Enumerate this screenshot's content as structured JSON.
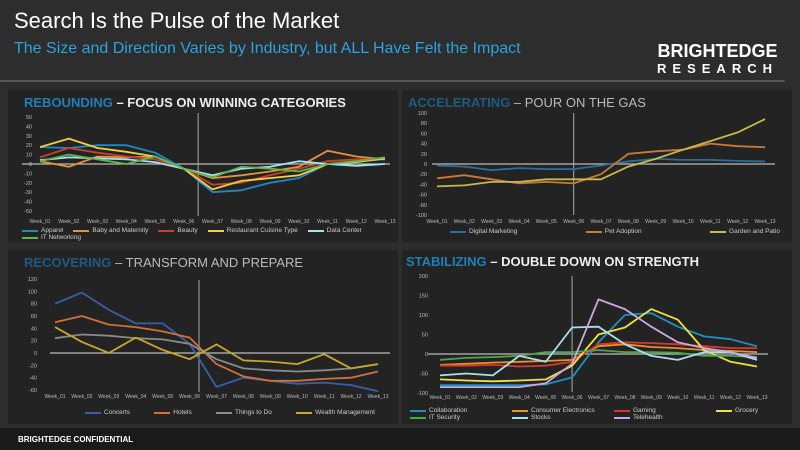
{
  "header": {
    "title": "Search Is the Pulse of the Market",
    "subtitle": "The Size and Direction Varies by Industry, but ALL Have Felt the Impact",
    "logo_line1": "BRIGHTEDGE",
    "logo_line2": "RESEARCH"
  },
  "footer": {
    "text": "BRIGHTEDGE CONFIDENTIAL"
  },
  "chart_data": [
    {
      "type": "line",
      "title_keyword": "REBOUNDING",
      "title_rest": " – FOCUS ON WINNING CATEGORIES",
      "x": [
        "Week_01",
        "Week_02",
        "Week_03",
        "Week_04",
        "Week_05",
        "Week_06",
        "Week_07",
        "Week_08",
        "Week_09",
        "Week_10",
        "Week_11",
        "Week_12",
        "Week_13"
      ],
      "yticks": [
        50,
        40,
        30,
        20,
        10,
        0,
        -10,
        -20,
        -30,
        -40,
        -50
      ],
      "ylim": [
        -50,
        50
      ],
      "divider_after": "Week_06",
      "legend": "bottom",
      "series": [
        {
          "name": "Apparel",
          "color": "#1e88c8",
          "values": [
            18,
            17,
            20,
            20,
            12,
            -5,
            -30,
            -28,
            -20,
            -15,
            0,
            3,
            5
          ]
        },
        {
          "name": "Baby and Maternity",
          "color": "#e8923a",
          "values": [
            3,
            -3,
            8,
            7,
            8,
            -5,
            -15,
            -12,
            -8,
            -3,
            14,
            8,
            5
          ]
        },
        {
          "name": "Beauty",
          "color": "#c8402e",
          "values": [
            7,
            17,
            12,
            8,
            5,
            -5,
            -22,
            -20,
            -12,
            -5,
            3,
            5,
            6
          ]
        },
        {
          "name": "Restaurant Cuisine Type",
          "color": "#f0d040",
          "values": [
            18,
            27,
            17,
            13,
            8,
            -5,
            -27,
            -18,
            -15,
            -12,
            0,
            2,
            6
          ]
        },
        {
          "name": "Data Center",
          "color": "#a8e0f5",
          "values": [
            4,
            7,
            6,
            5,
            2,
            -5,
            -12,
            -5,
            -3,
            3,
            0,
            -2,
            0
          ]
        },
        {
          "name": "IT Networking",
          "color": "#5cb848",
          "values": [
            3,
            10,
            5,
            0,
            8,
            -5,
            -14,
            -3,
            -5,
            -8,
            0,
            3,
            7
          ]
        }
      ]
    },
    {
      "type": "line",
      "title_keyword": "ACCELERATING",
      "title_rest": " – POUR ON THE GAS",
      "x": [
        "Week_01",
        "Week_02",
        "Week_03",
        "Week_04",
        "Week_05",
        "Week_06",
        "Week_07",
        "Week_08",
        "Week_09",
        "Week_10",
        "Week_11",
        "Week_12",
        "Week_13"
      ],
      "yticks": [
        100,
        80,
        60,
        40,
        20,
        0,
        -20,
        -40,
        -60,
        -80,
        -100
      ],
      "ylim": [
        -100,
        100
      ],
      "divider_after": "Week_06",
      "legend": "bottom",
      "series": [
        {
          "name": "Digital Marketing",
          "color": "#2a6f9a",
          "values": [
            -3,
            -5,
            -12,
            -8,
            -10,
            -10,
            -3,
            5,
            10,
            8,
            8,
            6,
            5
          ]
        },
        {
          "name": "Pet Adoption",
          "color": "#c87a3a",
          "values": [
            -28,
            -22,
            -30,
            -38,
            -35,
            -38,
            -20,
            20,
            25,
            28,
            40,
            35,
            33
          ]
        },
        {
          "name": "Garden and Patio",
          "color": "#c8b848",
          "values": [
            -44,
            -42,
            -35,
            -35,
            -30,
            -30,
            -30,
            -5,
            10,
            28,
            45,
            62,
            88
          ]
        }
      ]
    },
    {
      "type": "line",
      "title_keyword": "RECOVERING",
      "title_rest": " – TRANSFORM AND PREPARE",
      "x": [
        "Week_01",
        "Week_02",
        "Week_03",
        "Week_04",
        "Week_05",
        "Week_06",
        "Week_07",
        "Week_08",
        "Week_09",
        "Week_10",
        "Week_11",
        "Week_12",
        "Week_13"
      ],
      "yticks": [
        120,
        100,
        80,
        60,
        40,
        20,
        0,
        -20,
        -40,
        -60
      ],
      "ylim": [
        -60,
        120
      ],
      "divider_after": "Week_06",
      "legend": "bottom",
      "series": [
        {
          "name": "Concerts",
          "color": "#3a5fa8",
          "values": [
            80,
            98,
            70,
            48,
            48,
            15,
            -55,
            -40,
            -45,
            -50,
            -48,
            -52,
            -62
          ]
        },
        {
          "name": "Hotels",
          "color": "#d0703a",
          "values": [
            50,
            60,
            46,
            42,
            35,
            25,
            -18,
            -38,
            -45,
            -45,
            -42,
            -40,
            -30
          ]
        },
        {
          "name": "Things to Do",
          "color": "#8a8a8a",
          "values": [
            24,
            30,
            28,
            24,
            22,
            15,
            -10,
            -25,
            -28,
            -30,
            -28,
            -25,
            -18
          ]
        },
        {
          "name": "Wealth Management",
          "color": "#c8a828",
          "values": [
            42,
            18,
            0,
            25,
            5,
            -10,
            14,
            -12,
            -14,
            -18,
            -2,
            -25,
            -18
          ]
        }
      ]
    },
    {
      "type": "line",
      "title_keyword": "STABILIZING",
      "title_rest": " – DOUBLE DOWN ON STRENGTH",
      "x": [
        "Week_01",
        "Week_02",
        "Week_03",
        "Week_04",
        "Week_05",
        "Week_06",
        "Week_07",
        "Week_08",
        "Week_09",
        "Week_10",
        "Week_11",
        "Week_12",
        "Week_13"
      ],
      "yticks": [
        200,
        150,
        100,
        50,
        0,
        -50,
        -100
      ],
      "ylim": [
        -100,
        200
      ],
      "divider_after": "Week_06",
      "legend": "bottom",
      "series": [
        {
          "name": "Collaboration",
          "color": "#1f8fc0",
          "values": [
            -80,
            -80,
            -80,
            -80,
            -78,
            -60,
            30,
            100,
            105,
            70,
            45,
            38,
            20
          ]
        },
        {
          "name": "Consumer Electronics",
          "color": "#e8902a",
          "values": [
            -28,
            -25,
            -22,
            -20,
            -18,
            -15,
            20,
            25,
            18,
            15,
            10,
            8,
            5
          ]
        },
        {
          "name": "Gaming",
          "color": "#d8382a",
          "values": [
            -30,
            -30,
            -28,
            -32,
            -30,
            -20,
            25,
            30,
            28,
            25,
            20,
            15,
            15
          ]
        },
        {
          "name": "Grocery",
          "color": "#f0e040",
          "values": [
            -65,
            -68,
            -70,
            -68,
            -65,
            -30,
            50,
            68,
            115,
            88,
            10,
            -20,
            -32
          ]
        },
        {
          "name": "IT Security",
          "color": "#4aa84a",
          "values": [
            -15,
            -10,
            -8,
            -5,
            5,
            5,
            10,
            5,
            5,
            3,
            -5,
            -5,
            -8
          ]
        },
        {
          "name": "Stocks",
          "color": "#a8e0f0",
          "values": [
            -55,
            -50,
            -55,
            -5,
            -20,
            68,
            70,
            25,
            -5,
            -15,
            5,
            5,
            -15
          ]
        },
        {
          "name": "Telehealth",
          "color": "#c8a8e0",
          "values": [
            -85,
            -85,
            -85,
            -85,
            -75,
            -25,
            140,
            115,
            70,
            30,
            15,
            5,
            -10
          ]
        }
      ]
    }
  ]
}
